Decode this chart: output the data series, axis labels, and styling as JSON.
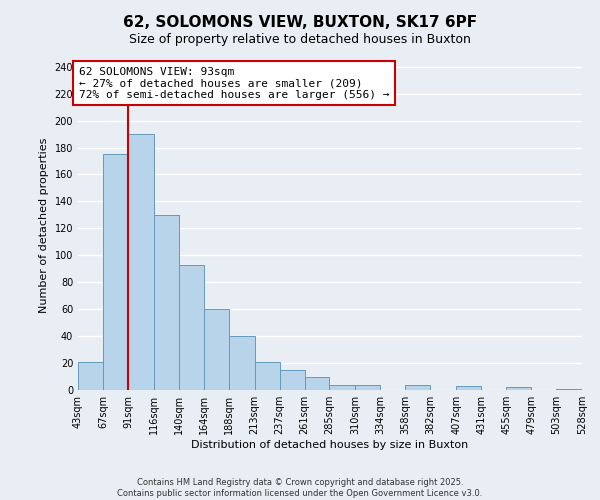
{
  "title": "62, SOLOMONS VIEW, BUXTON, SK17 6PF",
  "subtitle": "Size of property relative to detached houses in Buxton",
  "xlabel": "Distribution of detached houses by size in Buxton",
  "ylabel": "Number of detached properties",
  "bar_values": [
    21,
    175,
    190,
    130,
    93,
    60,
    40,
    21,
    15,
    10,
    4,
    4,
    0,
    4,
    0,
    3,
    0,
    2,
    0,
    1
  ],
  "bin_edges": [
    43,
    67,
    91,
    116,
    140,
    164,
    188,
    213,
    237,
    261,
    285,
    310,
    334,
    358,
    382,
    407,
    431,
    455,
    479,
    503,
    528
  ],
  "tick_labels": [
    "43sqm",
    "67sqm",
    "91sqm",
    "116sqm",
    "140sqm",
    "164sqm",
    "188sqm",
    "213sqm",
    "237sqm",
    "261sqm",
    "285sqm",
    "310sqm",
    "334sqm",
    "358sqm",
    "382sqm",
    "407sqm",
    "431sqm",
    "455sqm",
    "479sqm",
    "503sqm",
    "528sqm"
  ],
  "bar_color": "#b8d4ea",
  "bar_edge_color": "#6699bb",
  "property_line_x": 91,
  "property_line_color": "#cc0000",
  "annotation_text": "62 SOLOMONS VIEW: 93sqm\n← 27% of detached houses are smaller (209)\n72% of semi-detached houses are larger (556) →",
  "annotation_box_color": "#ffffff",
  "annotation_box_edge": "#cc0000",
  "ylim": [
    0,
    245
  ],
  "yticks": [
    0,
    20,
    40,
    60,
    80,
    100,
    120,
    140,
    160,
    180,
    200,
    220,
    240
  ],
  "footer_line1": "Contains HM Land Registry data © Crown copyright and database right 2025.",
  "footer_line2": "Contains public sector information licensed under the Open Government Licence v3.0.",
  "bg_color": "#e8eef4",
  "plot_bg_color": "#e8eef4",
  "grid_color": "#ffffff",
  "title_fontsize": 11,
  "subtitle_fontsize": 9,
  "ylabel_fontsize": 8,
  "xlabel_fontsize": 8,
  "tick_fontsize": 7,
  "annot_fontsize": 8,
  "footer_fontsize": 6
}
